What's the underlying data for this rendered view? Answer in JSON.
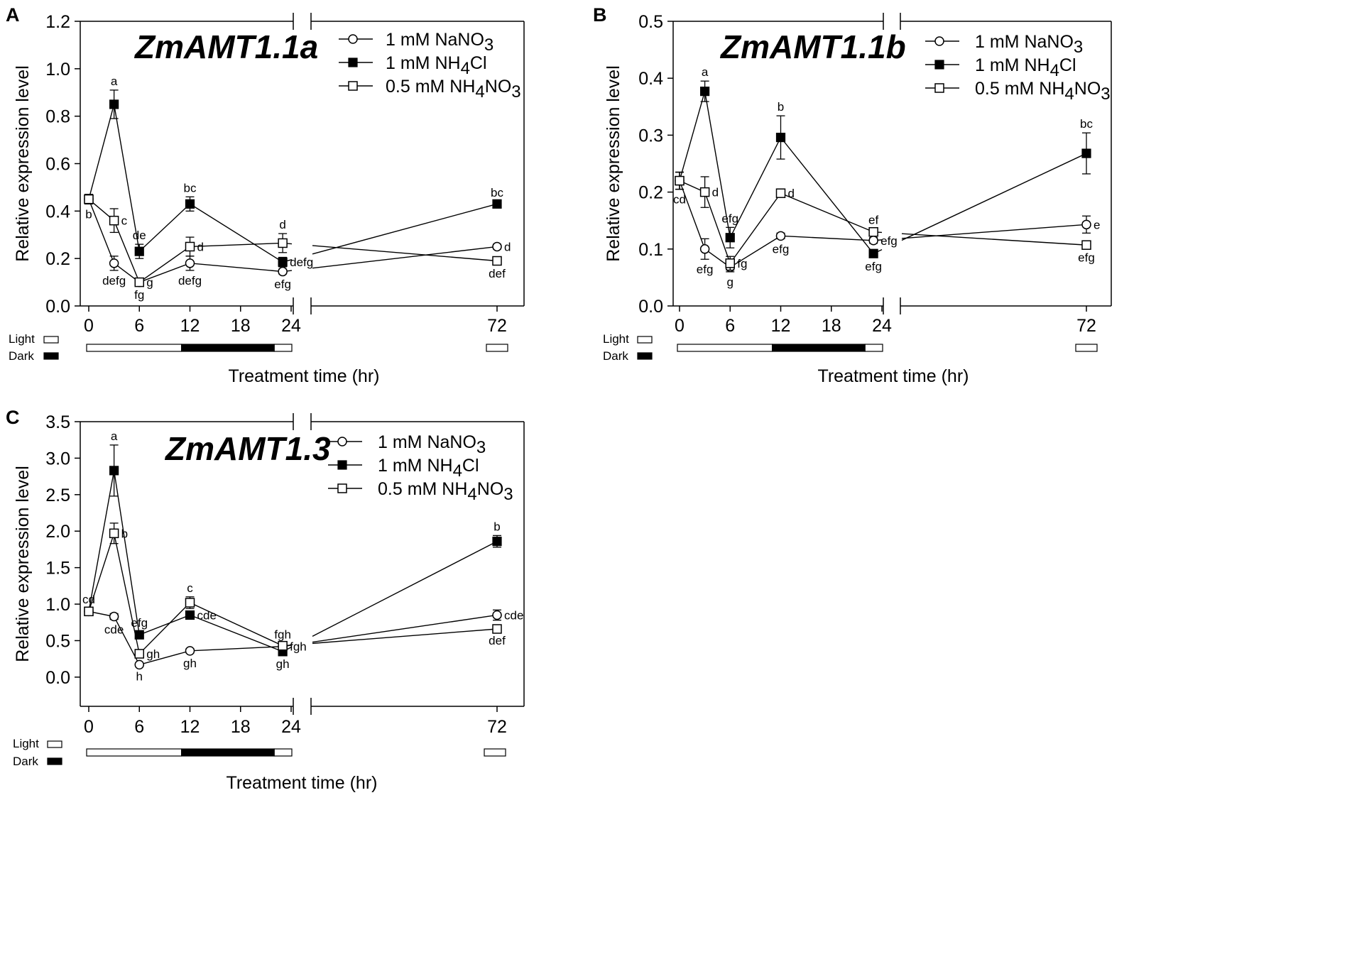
{
  "chart_data": [
    {
      "type": "line",
      "panel": "A",
      "title": "ZmAMT1.1a",
      "xlabel": "Treatment time (hr)",
      "ylabel": "Relative expression level",
      "ylim": [
        0,
        1.2
      ],
      "yticks": [
        "0.0",
        "0.2",
        "0.4",
        "0.6",
        "0.8",
        "1.0",
        "1.2"
      ],
      "xticks": [
        "0",
        "6",
        "12",
        "18",
        "24",
        "72"
      ],
      "light_label": "Light",
      "dark_label": "Dark",
      "x": [
        0,
        3,
        6,
        12,
        23,
        72
      ],
      "series": [
        {
          "name": "1 mM NaNO3",
          "marker": "circle-open",
          "legend_main": "1 mM NaNO",
          "legend_sub": "3",
          "legend_tail": "",
          "values": [
            0.45,
            0.18,
            0.1,
            0.18,
            0.145,
            0.25
          ],
          "errors": [
            0.02,
            0.03,
            0.01,
            0.03,
            0.01,
            0.01
          ],
          "labels": [
            "",
            "defg",
            "g",
            "defg",
            "efg",
            "d"
          ]
        },
        {
          "name": "1 mM NH4Cl",
          "marker": "square-filled",
          "legend_main": "1 mM NH",
          "legend_sub": "4",
          "legend_tail": "Cl",
          "values": [
            0.45,
            0.85,
            0.23,
            0.43,
            0.185,
            0.43
          ],
          "errors": [
            0.02,
            0.06,
            0.03,
            0.03,
            0.02,
            0.01
          ],
          "labels": [
            "",
            "a",
            "de",
            "bc",
            "defg",
            "bc"
          ]
        },
        {
          "name": "0.5 mM NH4NO3",
          "marker": "square-open",
          "legend_main": "0.5 mM NH",
          "legend_sub": "4",
          "legend_tail": "NO",
          "legend_sub2": "3",
          "values": [
            0.45,
            0.36,
            0.1,
            0.25,
            0.265,
            0.19
          ],
          "errors": [
            0.02,
            0.05,
            0.01,
            0.04,
            0.04,
            0.01
          ],
          "labels": [
            "b",
            "c",
            "fg",
            "d",
            "d",
            "def"
          ]
        }
      ]
    },
    {
      "type": "line",
      "panel": "B",
      "title": "ZmAMT1.1b",
      "xlabel": "Treatment time (hr)",
      "ylabel": "Relative expression level",
      "ylim": [
        0,
        0.5
      ],
      "yticks": [
        "0.0",
        "0.1",
        "0.2",
        "0.3",
        "0.4",
        "0.5"
      ],
      "xticks": [
        "0",
        "6",
        "12",
        "18",
        "24",
        "72"
      ],
      "light_label": "Light",
      "dark_label": "Dark",
      "x": [
        0,
        3,
        6,
        12,
        23,
        72
      ],
      "series": [
        {
          "name": "1 mM NaNO3",
          "marker": "circle-open",
          "legend_main": "1 mM NaNO",
          "legend_sub": "3",
          "legend_tail": "",
          "values": [
            0.22,
            0.1,
            0.068,
            0.123,
            0.115,
            0.143
          ],
          "errors": [
            0.015,
            0.018,
            0.008,
            0.005,
            0.005,
            0.015
          ],
          "labels": [
            "",
            "efg",
            "g",
            "efg",
            "efg",
            "e"
          ]
        },
        {
          "name": "1 mM NH4Cl",
          "marker": "square-filled",
          "legend_main": "1 mM NH",
          "legend_sub": "4",
          "legend_tail": "Cl",
          "values": [
            0.22,
            0.377,
            0.12,
            0.296,
            0.092,
            0.268
          ],
          "errors": [
            0.015,
            0.018,
            0.018,
            0.038,
            0.005,
            0.036
          ],
          "labels": [
            "",
            "a",
            "efg",
            "b",
            "efg",
            "bc"
          ]
        },
        {
          "name": "0.5 mM NH4NO3",
          "marker": "square-open",
          "legend_main": "0.5 mM NH",
          "legend_sub": "4",
          "legend_tail": "NO",
          "legend_sub2": "3",
          "values": [
            0.22,
            0.2,
            0.075,
            0.198,
            0.13,
            0.107
          ],
          "errors": [
            0.015,
            0.027,
            0.012,
            0.006,
            0.005,
            0.004
          ],
          "labels": [
            "cd",
            "d",
            "fg",
            "d",
            "ef",
            "efg"
          ]
        }
      ]
    },
    {
      "type": "line",
      "panel": "C",
      "title": "ZmAMT1.3",
      "xlabel": "Treatment time (hr)",
      "ylabel": "Relative expression level",
      "ylim": [
        -0.4,
        3.5
      ],
      "yticks": [
        "0.0",
        "0.5",
        "1.0",
        "1.5",
        "2.0",
        "2.5",
        "3.0",
        "3.5"
      ],
      "xticks": [
        "0",
        "6",
        "12",
        "18",
        "24",
        "72"
      ],
      "light_label": "Light",
      "dark_label": "Dark",
      "x": [
        0,
        3,
        6,
        12,
        23,
        72
      ],
      "series": [
        {
          "name": "1 mM NaNO3",
          "marker": "circle-open",
          "legend_main": "1 mM NaNO",
          "legend_sub": "3",
          "legend_tail": "",
          "values": [
            0.9,
            0.83,
            0.17,
            0.36,
            0.42,
            0.85
          ],
          "errors": [
            0.04,
            0.04,
            0.02,
            0.03,
            0.03,
            0.07
          ],
          "labels": [
            "cd",
            "cde",
            "h",
            "gh",
            "fgh",
            "cde"
          ]
        },
        {
          "name": "1 mM NH4Cl",
          "marker": "square-filled",
          "legend_main": "1 mM NH",
          "legend_sub": "4",
          "legend_tail": "Cl",
          "values": [
            0.9,
            2.83,
            0.58,
            0.85,
            0.35,
            1.86
          ],
          "errors": [
            0.04,
            0.35,
            0.04,
            0.04,
            0.03,
            0.08
          ],
          "labels": [
            "",
            "a",
            "efg",
            "cde",
            "gh",
            "b"
          ]
        },
        {
          "name": "0.5 mM NH4NO3",
          "marker": "square-open",
          "legend_main": "0.5 mM NH",
          "legend_sub": "4",
          "legend_tail": "NO",
          "legend_sub2": "3",
          "values": [
            0.9,
            1.97,
            0.32,
            1.02,
            0.43,
            0.66
          ],
          "errors": [
            0.04,
            0.14,
            0.03,
            0.08,
            0.03,
            0.02
          ],
          "labels": [
            "",
            "b",
            "gh",
            "c",
            "fgh",
            "def"
          ]
        }
      ]
    }
  ]
}
